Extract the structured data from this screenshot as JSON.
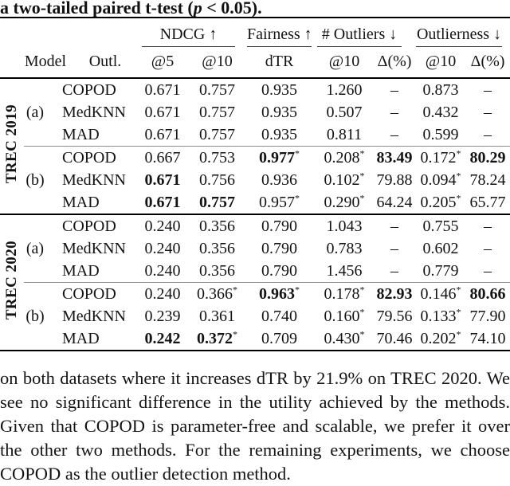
{
  "caption": {
    "prefix": "a two-tailed paired t-test (",
    "p_var": "p",
    "suffix": " < 0.05)."
  },
  "colors": {
    "text": "#111111",
    "heavy_rule": "#000000",
    "light_rule": "#8f8f8f",
    "background": "#ffffff"
  },
  "table": {
    "group_headers": [
      {
        "label": "NDCG ↑",
        "span": 2
      },
      {
        "label": "Fairness ↑",
        "span": 1
      },
      {
        "label": "# Outliers ↓",
        "span": 2
      },
      {
        "label": "Outlierness ↓",
        "span": 2
      }
    ],
    "sub_headers": {
      "model": "Model",
      "outl": "Outl.",
      "cols": [
        "@5",
        "@10",
        "dTR",
        "@10",
        "Δ(%)",
        "@10",
        "Δ(%)"
      ]
    },
    "sections": [
      {
        "dataset": "TREC 2019",
        "groups": [
          {
            "label": "(a)",
            "rows": [
              {
                "outl": "COPOD",
                "cells": [
                  {
                    "v": "0.671"
                  },
                  {
                    "v": "0.757"
                  },
                  {
                    "v": "0.935"
                  },
                  {
                    "v": "1.260"
                  },
                  {
                    "v": "–"
                  },
                  {
                    "v": "0.873"
                  },
                  {
                    "v": "–"
                  }
                ]
              },
              {
                "outl": "MedKNN",
                "cells": [
                  {
                    "v": "0.671"
                  },
                  {
                    "v": "0.757"
                  },
                  {
                    "v": "0.935"
                  },
                  {
                    "v": "0.507"
                  },
                  {
                    "v": "–"
                  },
                  {
                    "v": "0.432"
                  },
                  {
                    "v": "–"
                  }
                ]
              },
              {
                "outl": "MAD",
                "cells": [
                  {
                    "v": "0.671"
                  },
                  {
                    "v": "0.757"
                  },
                  {
                    "v": "0.935"
                  },
                  {
                    "v": "0.811"
                  },
                  {
                    "v": "–"
                  },
                  {
                    "v": "0.599"
                  },
                  {
                    "v": "–"
                  }
                ]
              }
            ]
          },
          {
            "label": "(b)",
            "rows": [
              {
                "outl": "COPOD",
                "cells": [
                  {
                    "v": "0.667"
                  },
                  {
                    "v": "0.753"
                  },
                  {
                    "v": "0.977",
                    "b": true,
                    "s": true
                  },
                  {
                    "v": "0.208",
                    "s": true
                  },
                  {
                    "v": "83.49",
                    "b": true
                  },
                  {
                    "v": "0.172",
                    "s": true
                  },
                  {
                    "v": "80.29",
                    "b": true
                  }
                ]
              },
              {
                "outl": "MedKNN",
                "cells": [
                  {
                    "v": "0.671",
                    "b": true
                  },
                  {
                    "v": "0.756"
                  },
                  {
                    "v": "0.936"
                  },
                  {
                    "v": "0.102",
                    "s": true
                  },
                  {
                    "v": "79.88"
                  },
                  {
                    "v": "0.094",
                    "s": true
                  },
                  {
                    "v": "78.24"
                  }
                ]
              },
              {
                "outl": "MAD",
                "cells": [
                  {
                    "v": "0.671",
                    "b": true
                  },
                  {
                    "v": "0.757",
                    "b": true
                  },
                  {
                    "v": "0.957",
                    "s": true
                  },
                  {
                    "v": "0.290",
                    "s": true
                  },
                  {
                    "v": "64.24"
                  },
                  {
                    "v": "0.205",
                    "s": true
                  },
                  {
                    "v": "65.77"
                  }
                ]
              }
            ]
          }
        ]
      },
      {
        "dataset": "TREC 2020",
        "groups": [
          {
            "label": "(a)",
            "rows": [
              {
                "outl": "COPOD",
                "cells": [
                  {
                    "v": "0.240"
                  },
                  {
                    "v": "0.356"
                  },
                  {
                    "v": "0.790"
                  },
                  {
                    "v": "1.043"
                  },
                  {
                    "v": "–"
                  },
                  {
                    "v": "0.755"
                  },
                  {
                    "v": "–"
                  }
                ]
              },
              {
                "outl": "MedKNN",
                "cells": [
                  {
                    "v": "0.240"
                  },
                  {
                    "v": "0.356"
                  },
                  {
                    "v": "0.790"
                  },
                  {
                    "v": "0.783"
                  },
                  {
                    "v": "–"
                  },
                  {
                    "v": "0.602"
                  },
                  {
                    "v": "–"
                  }
                ]
              },
              {
                "outl": "MAD",
                "cells": [
                  {
                    "v": "0.240"
                  },
                  {
                    "v": "0.356"
                  },
                  {
                    "v": "0.790"
                  },
                  {
                    "v": "1.456"
                  },
                  {
                    "v": "–"
                  },
                  {
                    "v": "0.779"
                  },
                  {
                    "v": "–"
                  }
                ]
              }
            ]
          },
          {
            "label": "(b)",
            "rows": [
              {
                "outl": "COPOD",
                "cells": [
                  {
                    "v": "0.240"
                  },
                  {
                    "v": "0.366",
                    "s": true
                  },
                  {
                    "v": "0.963",
                    "b": true,
                    "s": true
                  },
                  {
                    "v": "0.178",
                    "s": true
                  },
                  {
                    "v": "82.93",
                    "b": true
                  },
                  {
                    "v": "0.146",
                    "s": true
                  },
                  {
                    "v": "80.66",
                    "b": true
                  }
                ]
              },
              {
                "outl": "MedKNN",
                "cells": [
                  {
                    "v": "0.239"
                  },
                  {
                    "v": "0.361"
                  },
                  {
                    "v": "0.740"
                  },
                  {
                    "v": "0.160",
                    "s": true
                  },
                  {
                    "v": "79.56"
                  },
                  {
                    "v": "0.133",
                    "s": true
                  },
                  {
                    "v": "77.90"
                  }
                ]
              },
              {
                "outl": "MAD",
                "cells": [
                  {
                    "v": "0.242",
                    "b": true
                  },
                  {
                    "v": "0.372",
                    "b": true,
                    "s": true
                  },
                  {
                    "v": "0.709"
                  },
                  {
                    "v": "0.430",
                    "s": true
                  },
                  {
                    "v": "70.46"
                  },
                  {
                    "v": "0.202",
                    "s": true
                  },
                  {
                    "v": "74.10"
                  }
                ]
              }
            ]
          }
        ]
      }
    ]
  },
  "paragraph": {
    "lines": [
      "on both datasets where it increases dTR by 21.9% on TREC 2020. We",
      "see no significant difference in the utility achieved by the methods.",
      "Given that COPOD is parameter-free and scalable, we prefer it over",
      "the other two methods. For the remaining experiments, we choose",
      "COPOD as the outlier detection method."
    ]
  }
}
